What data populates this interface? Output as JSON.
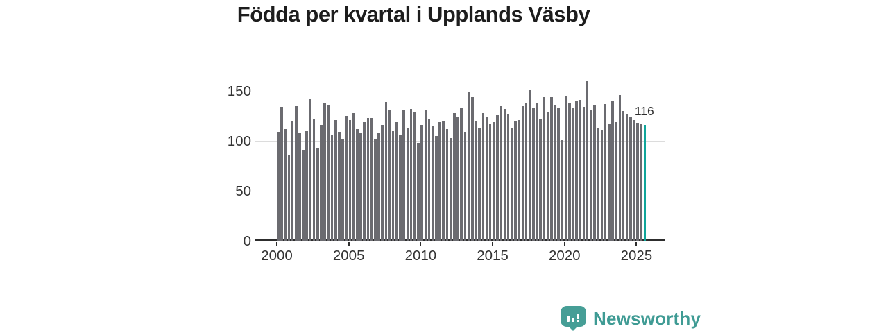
{
  "title": "Födda per kvartal i Upplands Väsby",
  "footer": {
    "brand": "Newsworthy"
  },
  "chart_data": {
    "type": "bar",
    "title": "Födda per kvartal i Upplands Väsby",
    "xlabel": "",
    "ylabel": "",
    "x_tick_labels": [
      "2000",
      "2005",
      "2010",
      "2015",
      "2020",
      "2025"
    ],
    "y_tick_labels": [
      "0",
      "50",
      "100",
      "150"
    ],
    "ylim": [
      0,
      163
    ],
    "grid": "horizontal",
    "legend": "none",
    "bar_color": "#6b6b70",
    "highlight_color": "#10a69b",
    "highlight_index": 102,
    "highlight_label": "116",
    "categories": [
      "2000Q1",
      "2000Q2",
      "2000Q3",
      "2000Q4",
      "2001Q1",
      "2001Q2",
      "2001Q3",
      "2001Q4",
      "2002Q1",
      "2002Q2",
      "2002Q3",
      "2002Q4",
      "2003Q1",
      "2003Q2",
      "2003Q3",
      "2003Q4",
      "2004Q1",
      "2004Q2",
      "2004Q3",
      "2004Q4",
      "2005Q1",
      "2005Q2",
      "2005Q3",
      "2005Q4",
      "2006Q1",
      "2006Q2",
      "2006Q3",
      "2006Q4",
      "2007Q1",
      "2007Q2",
      "2007Q3",
      "2007Q4",
      "2008Q1",
      "2008Q2",
      "2008Q3",
      "2008Q4",
      "2009Q1",
      "2009Q2",
      "2009Q3",
      "2009Q4",
      "2010Q1",
      "2010Q2",
      "2010Q3",
      "2010Q4",
      "2011Q1",
      "2011Q2",
      "2011Q3",
      "2011Q4",
      "2012Q1",
      "2012Q2",
      "2012Q3",
      "2012Q4",
      "2013Q1",
      "2013Q2",
      "2013Q3",
      "2013Q4",
      "2014Q1",
      "2014Q2",
      "2014Q3",
      "2014Q4",
      "2015Q1",
      "2015Q2",
      "2015Q3",
      "2015Q4",
      "2016Q1",
      "2016Q2",
      "2016Q3",
      "2016Q4",
      "2017Q1",
      "2017Q2",
      "2017Q3",
      "2017Q4",
      "2018Q1",
      "2018Q2",
      "2018Q3",
      "2018Q4",
      "2019Q1",
      "2019Q2",
      "2019Q3",
      "2019Q4",
      "2020Q1",
      "2020Q2",
      "2020Q3",
      "2020Q4",
      "2021Q1",
      "2021Q2",
      "2021Q3",
      "2021Q4",
      "2022Q1",
      "2022Q2",
      "2022Q3",
      "2022Q4",
      "2023Q1",
      "2023Q2",
      "2023Q3",
      "2023Q4",
      "2024Q1",
      "2024Q2",
      "2024Q3",
      "2024Q4",
      "2025Q1",
      "2025Q2",
      "2025Q3"
    ],
    "values": [
      109,
      134,
      112,
      86,
      120,
      135,
      108,
      91,
      110,
      142,
      122,
      93,
      116,
      138,
      136,
      106,
      121,
      109,
      102,
      125,
      121,
      128,
      112,
      108,
      119,
      123,
      123,
      102,
      108,
      116,
      139,
      131,
      110,
      119,
      106,
      131,
      113,
      132,
      129,
      98,
      116,
      131,
      122,
      115,
      105,
      119,
      120,
      112,
      103,
      128,
      124,
      133,
      109,
      150,
      144,
      120,
      113,
      128,
      124,
      117,
      119,
      126,
      135,
      132,
      127,
      113,
      120,
      121,
      135,
      138,
      151,
      133,
      138,
      122,
      144,
      129,
      144,
      136,
      133,
      101,
      145,
      138,
      133,
      140,
      141,
      134,
      160,
      131,
      136,
      113,
      111,
      137,
      117,
      140,
      119,
      146,
      130,
      127,
      124,
      121,
      118,
      117,
      116
    ]
  }
}
